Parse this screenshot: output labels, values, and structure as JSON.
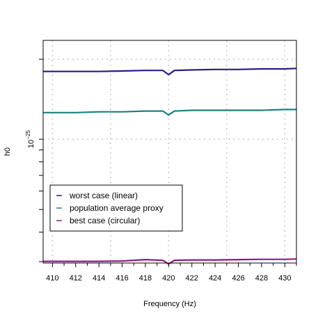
{
  "chart_data": {
    "type": "line",
    "title": "",
    "xlabel": "Frequency (Hz)",
    "ylabel": "h0",
    "yscale": "log",
    "xlim": [
      409.2,
      431.0
    ],
    "x_ticks": [
      410,
      412,
      414,
      416,
      418,
      420,
      422,
      424,
      426,
      428,
      430
    ],
    "x_tick_labels": [
      "410",
      "412",
      "414",
      "416",
      "418",
      "420",
      "422",
      "424",
      "426",
      "428",
      "430"
    ],
    "y_tick_labels": [
      {
        "base": "10",
        "exponent": "−25"
      }
    ],
    "grid": true,
    "legend_position": "bottom-left",
    "series": [
      {
        "name": "worst case (linear)",
        "color": "#2a1a8e",
        "x": [
          409.2,
          410,
          412,
          414,
          416,
          418,
          419.5,
          420,
          420.5,
          422,
          424,
          426,
          428,
          430,
          431
        ],
        "y": [
          1.95e-25,
          1.95e-25,
          1.95e-25,
          1.95e-25,
          1.96e-25,
          1.97e-25,
          1.97e-25,
          1.89e-25,
          1.97e-25,
          1.98e-25,
          1.99e-25,
          1.99e-25,
          2e-25,
          2e-25,
          2.01e-25
        ]
      },
      {
        "name": "population average proxy",
        "color": "#1a8080",
        "x": [
          409.2,
          410,
          412,
          414,
          416,
          418,
          419.5,
          420,
          420.5,
          422,
          424,
          426,
          428,
          430,
          431
        ],
        "y": [
          1.3e-25,
          1.3e-25,
          1.3e-25,
          1.31e-25,
          1.31e-25,
          1.32e-25,
          1.32e-25,
          1.27e-25,
          1.32e-25,
          1.33e-25,
          1.33e-25,
          1.33e-25,
          1.33e-25,
          1.34e-25,
          1.34e-25
        ]
      },
      {
        "name": "best case (circular)",
        "color": "#8e1a80",
        "x": [
          409.2,
          410,
          412,
          414,
          416,
          418,
          419.5,
          420,
          420.5,
          422,
          424,
          426,
          428,
          430,
          431
        ],
        "y": [
          3e-26,
          3e-26,
          3e-26,
          3e-26,
          3.01e-26,
          3.05e-26,
          3.03e-26,
          2.92e-26,
          3.03e-26,
          3.04e-26,
          3.04e-26,
          3.05e-26,
          3.06e-26,
          3.06e-26,
          3.07e-26
        ]
      }
    ]
  }
}
